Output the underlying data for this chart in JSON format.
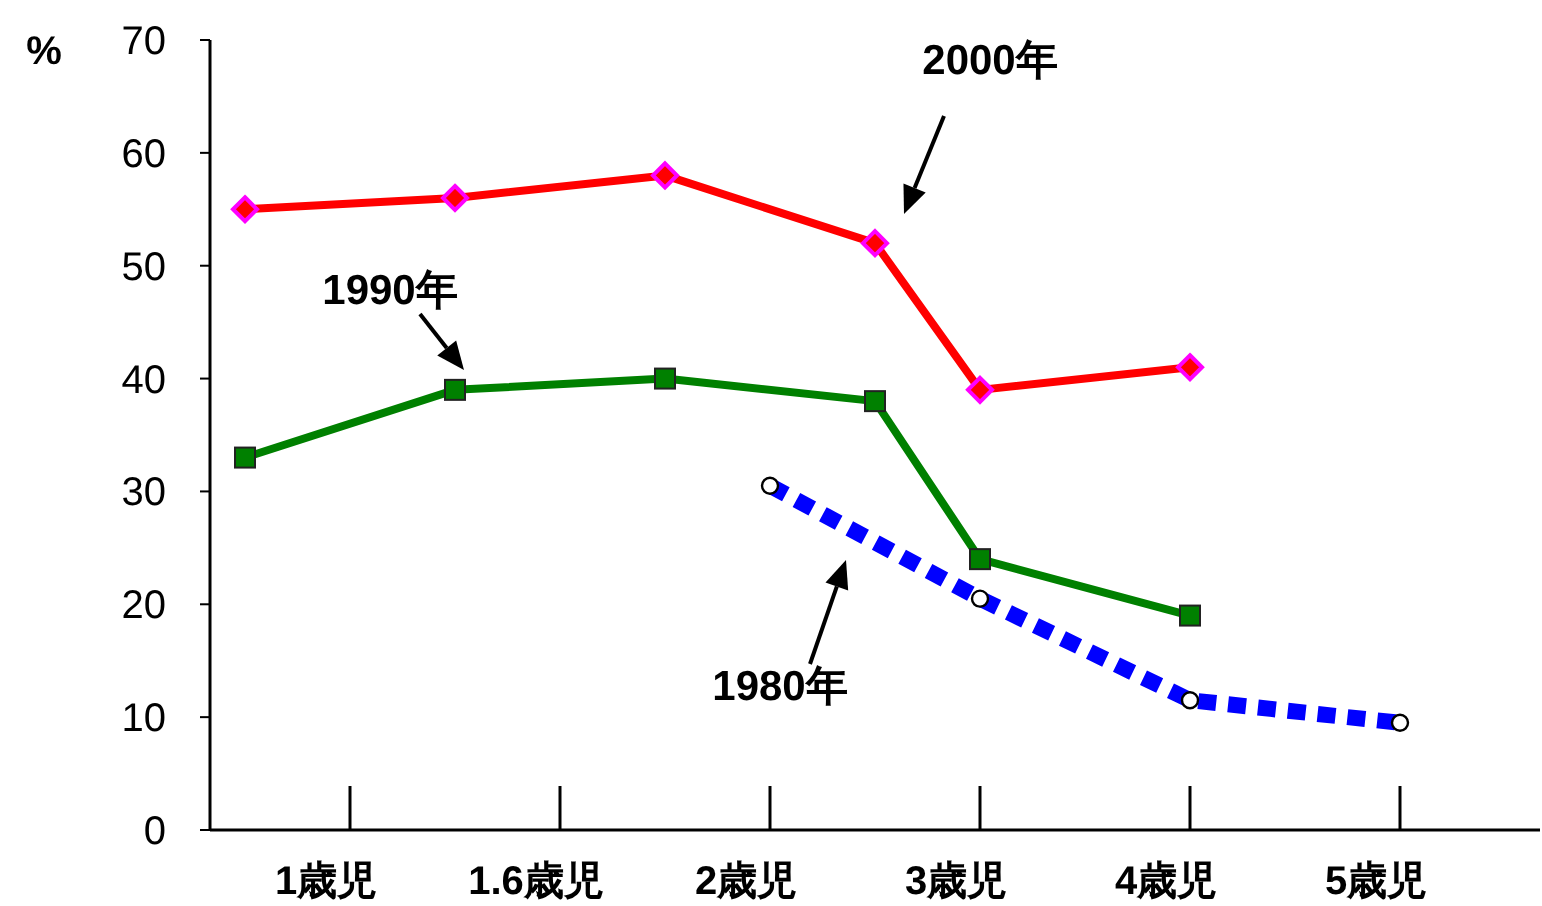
{
  "chart_data": {
    "type": "line",
    "ylabel": "%",
    "categories": [
      null,
      "1歳児",
      null,
      "1.6歳児",
      null,
      "2歳児",
      null,
      "3歳児",
      null,
      "4歳児",
      null,
      "5歳児"
    ],
    "series": [
      {
        "name": "2000年",
        "color": "#ff0000",
        "marker": "diamond",
        "line_style": "solid",
        "values": [
          55,
          null,
          56,
          null,
          58,
          null,
          52,
          39,
          null,
          41,
          null,
          null
        ]
      },
      {
        "name": "1990年",
        "color": "#008000",
        "marker": "square",
        "line_style": "solid",
        "values": [
          33,
          null,
          39,
          null,
          40,
          null,
          38,
          24,
          null,
          19,
          null,
          null
        ]
      },
      {
        "name": "1980年",
        "color": "#0000ff",
        "marker": "circle",
        "line_style": "dotted",
        "values": [
          null,
          null,
          null,
          null,
          null,
          30.5,
          null,
          20.5,
          null,
          11.5,
          null,
          9.5
        ]
      }
    ],
    "ylim": [
      0,
      70
    ],
    "yticks": [
      0,
      10,
      20,
      30,
      40,
      50,
      60,
      70
    ],
    "grid": false
  }
}
